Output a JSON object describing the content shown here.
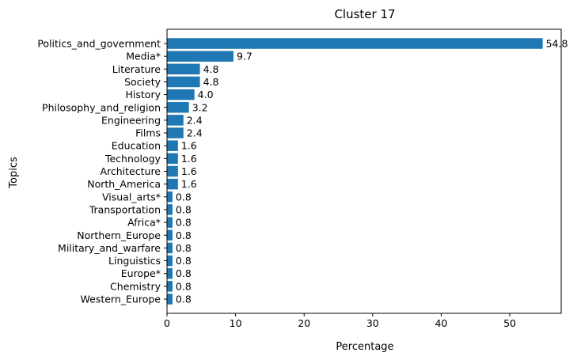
{
  "chart_data": {
    "type": "bar",
    "orientation": "horizontal",
    "title": "Cluster 17",
    "xlabel": "Percentage",
    "ylabel": "Topics",
    "xlim": [
      0,
      57.5
    ],
    "xticks": [
      0,
      10,
      20,
      30,
      40,
      50
    ],
    "grid": false,
    "bar_color": "#1f77b4",
    "categories": [
      "Politics_and_government",
      "Media*",
      "Literature",
      "Society",
      "History",
      "Philosophy_and_religion",
      "Engineering",
      "Films",
      "Education",
      "Technology",
      "Architecture",
      "North_America",
      "Visual_arts*",
      "Transportation",
      "Africa*",
      "Northern_Europe",
      "Military_and_warfare",
      "Linguistics",
      "Europe*",
      "Chemistry",
      "Western_Europe"
    ],
    "values": [
      54.8,
      9.7,
      4.8,
      4.8,
      4.0,
      3.2,
      2.4,
      2.4,
      1.6,
      1.6,
      1.6,
      1.6,
      0.8,
      0.8,
      0.8,
      0.8,
      0.8,
      0.8,
      0.8,
      0.8,
      0.8
    ],
    "data_labels": [
      "54.8",
      "9.7",
      "4.8",
      "4.8",
      "4.0",
      "3.2",
      "2.4",
      "2.4",
      "1.6",
      "1.6",
      "1.6",
      "1.6",
      "0.8",
      "0.8",
      "0.8",
      "0.8",
      "0.8",
      "0.8",
      "0.8",
      "0.8",
      "0.8"
    ]
  }
}
